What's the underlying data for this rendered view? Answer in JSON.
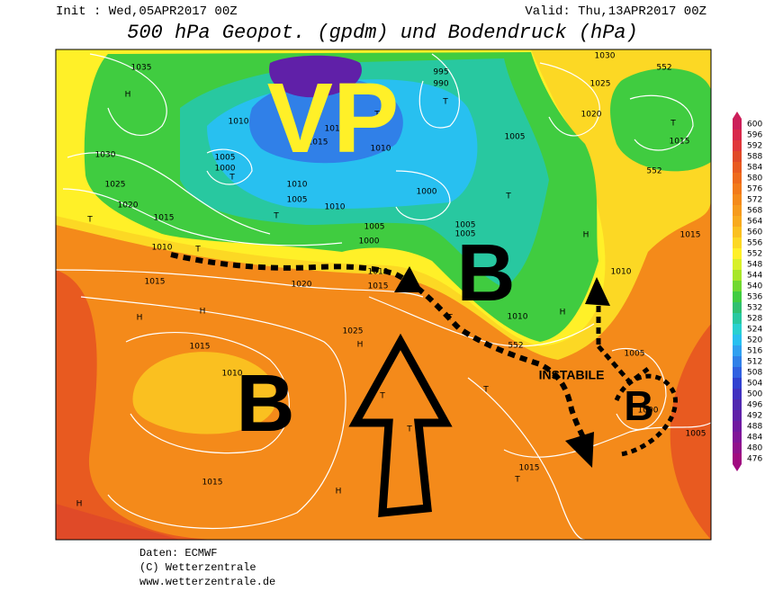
{
  "header": {
    "init": "Init : Wed,05APR2017 00Z",
    "valid": "Valid: Thu,13APR2017 00Z",
    "title": "500 hPa Geopot. (gpdm) und Bodendruck (hPa)"
  },
  "map": {
    "annotations": [
      "VP",
      "B",
      "B",
      "B",
      "INSTABILE"
    ],
    "labels": [
      "H",
      "1035",
      "1030",
      "1025",
      "1020",
      "1015",
      "T",
      "1010",
      "T",
      "1015",
      "H",
      "H",
      "1020",
      "1015",
      "1010",
      "1015",
      "H",
      "H",
      "1025",
      "H",
      "T",
      "T",
      "1015",
      "T",
      "T",
      "1005",
      "1000",
      "1005",
      "1010",
      "H",
      "1010",
      "552",
      "T",
      "1005",
      "1005",
      "1000",
      "1005",
      "1000",
      "1010",
      "T",
      "1005",
      "1010",
      "1015",
      "1010",
      "T",
      "1015",
      "T",
      "995",
      "990",
      "1005",
      "1000",
      "T",
      "1010",
      "1005",
      "1030",
      "1025",
      "1020",
      "T",
      "1015",
      "552",
      "552",
      "H",
      "1015",
      "1010",
      "1015",
      "T"
    ]
  },
  "colorbar": {
    "ticks": [
      600,
      596,
      592,
      588,
      584,
      580,
      576,
      572,
      568,
      564,
      560,
      556,
      552,
      548,
      544,
      540,
      536,
      532,
      528,
      524,
      520,
      516,
      512,
      508,
      504,
      500,
      496,
      492,
      488,
      484,
      480,
      476
    ],
    "colors": [
      "#cc1f5a",
      "#d8284a",
      "#e0383a",
      "#e04a28",
      "#e85a20",
      "#ee6a1c",
      "#f27a1a",
      "#f48a1a",
      "#f69a1c",
      "#f8aa1e",
      "#fac020",
      "#fcd824",
      "#fff028",
      "#d8f028",
      "#a8e628",
      "#70d830",
      "#40cc40",
      "#30c070",
      "#28c8a0",
      "#28d0d0",
      "#28c0f0",
      "#30a0f0",
      "#3080e8",
      "#3060e0",
      "#3040d0",
      "#4030c0",
      "#5028b0",
      "#6020a8",
      "#7018a0",
      "#801498",
      "#90108c",
      "#a00a80"
    ]
  },
  "footer": {
    "source": "Daten: ECMWF",
    "copyright": "(C) Wetterzentrale",
    "url": "www.wetterzentrale.de"
  }
}
